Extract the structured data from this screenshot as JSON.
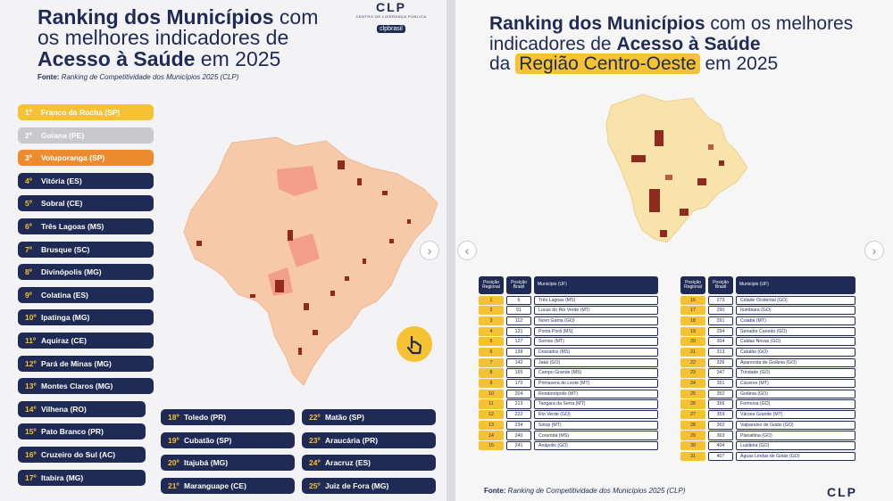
{
  "left": {
    "title_line1_bold": "Ranking dos Municípios",
    "title_line1_rest": " com",
    "title_line2": "os melhores indicadores de",
    "title_line3_bold": "Acesso à Saúde",
    "title_line3_rest": " em 2025",
    "brand_logo": "CLP",
    "brand_sub": "CENTRO DE LIDERANÇA PÚBLICA",
    "brand_social": "clpbrasil",
    "source_label": "Fonte:",
    "source_text": " Ranking de Competitividade dos Municípios 2025 (CLP)",
    "rank_list": [
      {
        "rank": "1º",
        "name": "Franco da Rocha (SP)"
      },
      {
        "rank": "2º",
        "name": "Goiana (PE)"
      },
      {
        "rank": "3º",
        "name": "Votuporanga (SP)"
      },
      {
        "rank": "4º",
        "name": "Vitória (ES)"
      },
      {
        "rank": "5º",
        "name": "Sobral (CE)"
      },
      {
        "rank": "6º",
        "name": "Três Lagoas (MS)"
      },
      {
        "rank": "7º",
        "name": "Brusque (SC)"
      },
      {
        "rank": "8º",
        "name": "Divinópolis (MG)"
      },
      {
        "rank": "9º",
        "name": "Colatina (ES)"
      },
      {
        "rank": "10º",
        "name": "Ipatinga (MG)"
      },
      {
        "rank": "11º",
        "name": "Aquiraz (CE)"
      },
      {
        "rank": "12º",
        "name": "Pará de Minas (MG)"
      },
      {
        "rank": "13º",
        "name": "Montes Claros (MG)"
      },
      {
        "rank": "14º",
        "name": "Vilhena (RO)"
      },
      {
        "rank": "15º",
        "name": "Pato Branco (PR)"
      },
      {
        "rank": "16º",
        "name": "Cruzeiro do Sul (AC)"
      },
      {
        "rank": "17º",
        "name": "Itabira (MG)"
      }
    ],
    "rank_col2": [
      {
        "rank": "18º",
        "name": "Toledo (PR)"
      },
      {
        "rank": "19º",
        "name": "Cubatão (SP)"
      },
      {
        "rank": "20º",
        "name": "Itajubá (MG)"
      },
      {
        "rank": "21º",
        "name": "Maranguape (CE)"
      }
    ],
    "rank_col3": [
      {
        "rank": "22º",
        "name": "Matão (SP)"
      },
      {
        "rank": "23º",
        "name": "Araucária (PR)"
      },
      {
        "rank": "24º",
        "name": "Aracruz (ES)"
      },
      {
        "rank": "25º",
        "name": "Juiz de Fora (MG)"
      }
    ]
  },
  "right": {
    "title_line1_bold": "Ranking dos Municípios",
    "title_line1_rest": " com os melhores",
    "title_line2_rest": "indicadores de ",
    "title_line2_bold": "Acesso à Saúde",
    "title_line3_pre": "da ",
    "title_line3_hl": "Região Centro-Oeste",
    "title_line3_rest": " em 2025",
    "headers": {
      "reg": "Posição Regional",
      "br": "Posição Brasil",
      "mun": "Município (UF)"
    },
    "table_left": [
      {
        "reg": "1",
        "br": "6",
        "mun": "Três Lagoas (MS)"
      },
      {
        "reg": "2",
        "br": "51",
        "mun": "Lucas do Rio Verde (MT)"
      },
      {
        "reg": "3",
        "br": "112",
        "mun": "Novo Gama (GO)"
      },
      {
        "reg": "4",
        "br": "121",
        "mun": "Ponta Porã (MS)"
      },
      {
        "reg": "5",
        "br": "127",
        "mun": "Sorriso (MT)"
      },
      {
        "reg": "6",
        "br": "138",
        "mun": "Dourados (MS)"
      },
      {
        "reg": "7",
        "br": "142",
        "mun": "Jataí (GO)"
      },
      {
        "reg": "8",
        "br": "165",
        "mun": "Campo Grande (MS)"
      },
      {
        "reg": "9",
        "br": "170",
        "mun": "Primavera do Leste (MT)"
      },
      {
        "reg": "10",
        "br": "204",
        "mun": "Rondonópolis (MT)"
      },
      {
        "reg": "11",
        "br": "213",
        "mun": "Tangará da Serra (MT)"
      },
      {
        "reg": "12",
        "br": "222",
        "mun": "Rio Verde (GO)"
      },
      {
        "reg": "13",
        "br": "234",
        "mun": "Sinop (MT)"
      },
      {
        "reg": "14",
        "br": "240",
        "mun": "Corumbá (MS)"
      },
      {
        "reg": "15",
        "br": "241",
        "mun": "Anápolis (GO)"
      }
    ],
    "table_right": [
      {
        "reg": "16",
        "br": "273",
        "mun": "Cidade Ocidental (GO)"
      },
      {
        "reg": "17",
        "br": "290",
        "mun": "Itumbiara (GO)"
      },
      {
        "reg": "18",
        "br": "291",
        "mun": "Cuiabá (MT)"
      },
      {
        "reg": "19",
        "br": "294",
        "mun": "Senador Canedo (GO)"
      },
      {
        "reg": "20",
        "br": "304",
        "mun": "Caldas Novas (GO)"
      },
      {
        "reg": "21",
        "br": "313",
        "mun": "Catalão (GO)"
      },
      {
        "reg": "22",
        "br": "326",
        "mun": "Aparecida de Goiânia (GO)"
      },
      {
        "reg": "23",
        "br": "347",
        "mun": "Trindade (GO)"
      },
      {
        "reg": "24",
        "br": "351",
        "mun": "Cáceres (MT)"
      },
      {
        "reg": "25",
        "br": "352",
        "mun": "Goiânia (GO)"
      },
      {
        "reg": "26",
        "br": "356",
        "mun": "Formosa (GO)"
      },
      {
        "reg": "27",
        "br": "359",
        "mun": "Várzea Grande (MT)"
      },
      {
        "reg": "28",
        "br": "362",
        "mun": "Valparaíso de Goiás (GO)"
      },
      {
        "reg": "29",
        "br": "363",
        "mun": "Planaltina (GO)"
      },
      {
        "reg": "30",
        "br": "404",
        "mun": "Luziânia (GO)"
      },
      {
        "reg": "31",
        "br": "407",
        "mun": "Águas Lindas de Goiás (GO)"
      }
    ],
    "source_label": "Fonte:",
    "source_text": " Ranking de Competitividade dos Municípios 2025 (CLP)",
    "brand_logo": "CLP"
  },
  "colors": {
    "navy": "#1f2a55",
    "gold": "#f4c232",
    "silver": "#c9c9cc",
    "bronze": "#ec8c2e",
    "map_base": "#f6c9a8",
    "map_dark": "#8f2a1c"
  },
  "icons": {
    "next": "chevron-right-icon",
    "tap": "hand-pointer-icon"
  }
}
